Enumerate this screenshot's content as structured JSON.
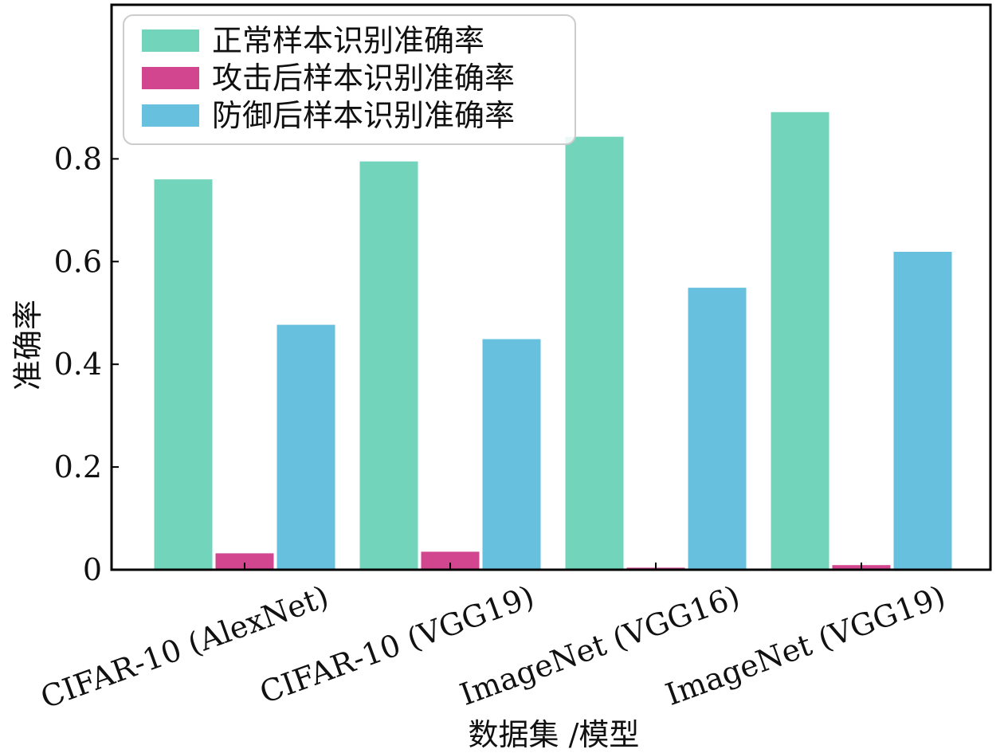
{
  "chart_data": {
    "type": "bar",
    "categories": [
      "CIFAR-10 (AlexNet)",
      "CIFAR-10 (VGG19)",
      "ImageNet (VGG16)",
      "ImageNet (VGG19)"
    ],
    "series": [
      {
        "name": "正常样本识别准确率",
        "color": "#72d5bb",
        "values": [
          0.76,
          0.795,
          0.843,
          0.891
        ]
      },
      {
        "name": "攻击后样本识别准确率",
        "color": "#d2468f",
        "values": [
          0.032,
          0.035,
          0.004,
          0.009
        ]
      },
      {
        "name": "防御后样本识别准确率",
        "color": "#67c1de",
        "values": [
          0.477,
          0.449,
          0.549,
          0.619
        ]
      }
    ],
    "xlabel": "数据集 /模型",
    "ylabel": "准确率",
    "ylim": [
      0,
      1.1
    ],
    "yticks": [
      0,
      0.2,
      0.4,
      0.6,
      0.8
    ],
    "ytick_labels": [
      "0",
      "0.2",
      "0.4",
      "0.6",
      "0.8"
    ],
    "grid": false,
    "legend_position": "top-left"
  }
}
